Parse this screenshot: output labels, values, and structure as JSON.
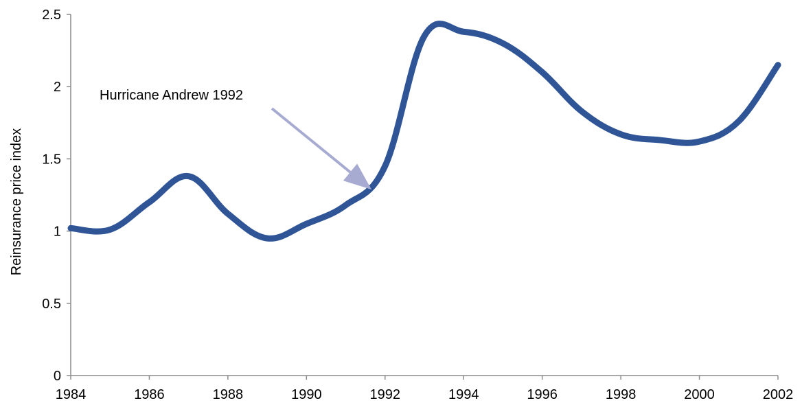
{
  "chart_data": {
    "type": "line",
    "title": "",
    "xlabel": "",
    "ylabel": "Reinsurance price index",
    "xlim": [
      1984,
      2002
    ],
    "ylim": [
      0,
      2.5
    ],
    "x_ticks": [
      "1984",
      "1986",
      "1988",
      "1990",
      "1992",
      "1994",
      "1996",
      "1998",
      "2000",
      "2002"
    ],
    "y_ticks": [
      "0",
      "0.5",
      "1",
      "1.5",
      "2",
      "2.5"
    ],
    "grid": false,
    "legend": "none",
    "series": [
      {
        "color": "#2f5597",
        "x": [
          1984,
          1985,
          1986,
          1987,
          1988,
          1989,
          1990,
          1991,
          1992,
          1993,
          1994,
          1995,
          1996,
          1997,
          1998,
          1999,
          2000,
          2001,
          2002
        ],
        "y": [
          1.02,
          1.01,
          1.2,
          1.38,
          1.12,
          0.95,
          1.05,
          1.18,
          1.45,
          2.35,
          2.38,
          2.3,
          2.1,
          1.83,
          1.67,
          1.63,
          1.62,
          1.76,
          2.15
        ]
      }
    ],
    "annotations": [
      {
        "text": "Hurricane Andrew 1992",
        "target_x": 1991.6,
        "target_y": 1.3,
        "arrow_color": "#a7abd2"
      }
    ]
  }
}
